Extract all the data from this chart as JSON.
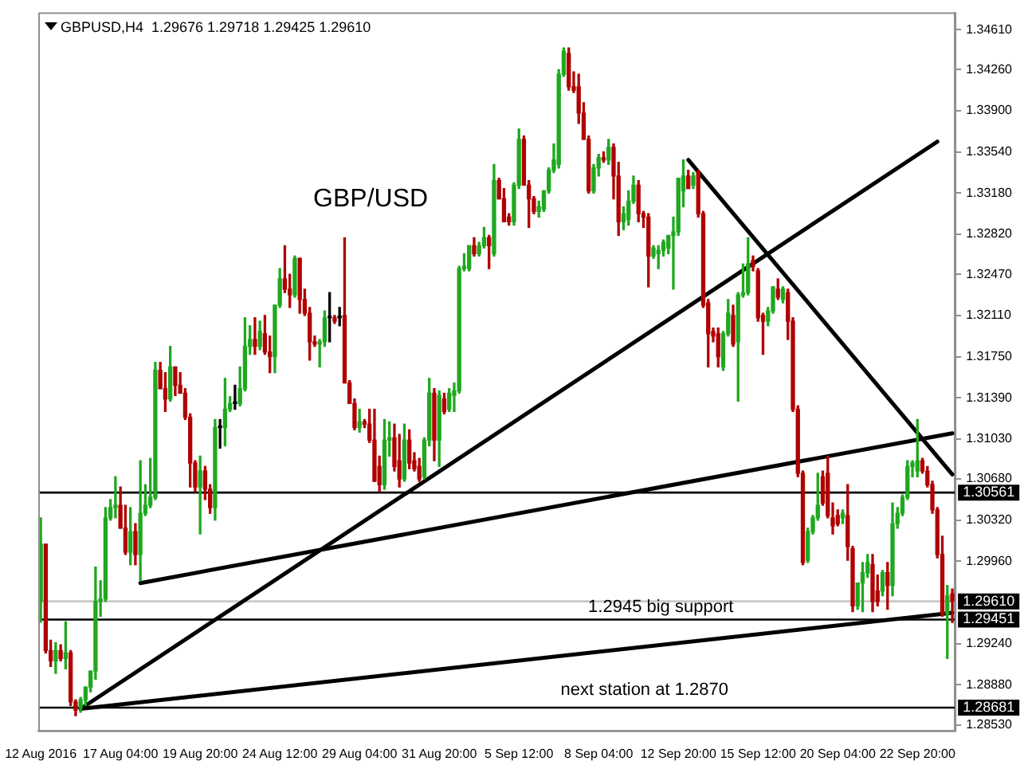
{
  "chart_data": {
    "type": "candlestick",
    "title": "GBPUSD,H4  1.29676 1.29718 1.29425 1.29610",
    "annotations": [
      "GBP/USD",
      "1.2945 big support",
      "next station at 1.2870"
    ],
    "categories": [
      "12 Aug 2016",
      null,
      null,
      null,
      null,
      null,
      null,
      null,
      null,
      null,
      null,
      null,
      null,
      null,
      null,
      null,
      "17 Aug 04:00",
      null,
      null,
      null,
      null,
      null,
      null,
      null,
      null,
      null,
      null,
      null,
      null,
      null,
      null,
      null,
      "19 Aug 20:00",
      null,
      null,
      null,
      null,
      null,
      null,
      null,
      null,
      null,
      null,
      null,
      null,
      null,
      null,
      null,
      "24 Aug 12:00",
      null,
      null,
      null,
      null,
      null,
      null,
      null,
      null,
      null,
      null,
      null,
      null,
      null,
      null,
      null,
      "29 Aug 04:00",
      null,
      null,
      null,
      null,
      null,
      null,
      null,
      null,
      null,
      null,
      null,
      null,
      null,
      null,
      null,
      "31 Aug 20:00",
      null,
      null,
      null,
      null,
      null,
      null,
      null,
      null,
      null,
      null,
      null,
      null,
      null,
      null,
      null,
      "5 Sep 12:00",
      null,
      null,
      null,
      null,
      null,
      null,
      null,
      null,
      null,
      null,
      null,
      null,
      null,
      null,
      null,
      "8 Sep 04:00",
      null,
      null,
      null,
      null,
      null,
      null,
      null,
      null,
      null,
      null,
      null,
      null,
      null,
      null,
      null,
      "12 Sep 20:00",
      null,
      null,
      null,
      null,
      null,
      null,
      null,
      null,
      null,
      null,
      null,
      null,
      null,
      null,
      null,
      "15 Sep 12:00",
      null,
      null,
      null,
      null,
      null,
      null,
      null,
      null,
      null,
      null,
      null,
      null,
      null,
      null,
      null,
      "20 Sep 04:00",
      null,
      null,
      null,
      null,
      null,
      null,
      null,
      null,
      null,
      null,
      null,
      null,
      null,
      null,
      null,
      "22 Sep 20:00",
      null,
      null,
      null,
      null,
      null,
      null,
      null
    ],
    "ohlc": [
      [
        1.2961,
        1.3034,
        1.2943,
        1.3011
      ],
      [
        1.3011,
        1.3011,
        1.2916,
        1.2918
      ],
      [
        1.2918,
        1.2927,
        1.2904,
        1.2909
      ],
      [
        1.2909,
        1.2925,
        1.2898,
        1.2918
      ],
      [
        1.2918,
        1.2923,
        1.2909,
        1.2911
      ],
      [
        1.2911,
        1.2943,
        1.2902,
        1.2916
      ],
      [
        1.2916,
        1.2918,
        1.287,
        1.2873
      ],
      [
        1.2873,
        1.2875,
        1.2861,
        1.2866
      ],
      [
        1.2868,
        1.2877,
        1.2864,
        1.2875
      ],
      [
        1.2875,
        1.2886,
        1.287,
        1.2886
      ],
      [
        1.2886,
        1.29,
        1.2882,
        1.29
      ],
      [
        1.29,
        1.2991,
        1.2893,
        1.2961
      ],
      [
        1.2961,
        1.2979,
        1.2948,
        1.2963
      ],
      [
        1.2963,
        1.3043,
        1.2961,
        1.3034
      ],
      [
        1.3034,
        1.305,
        1.3032,
        1.3043
      ],
      [
        1.3043,
        1.307,
        1.3034,
        1.3045
      ],
      [
        1.3045,
        1.3061,
        1.3025,
        1.3025
      ],
      [
        1.3025,
        1.3045,
        1.3002,
        1.3004
      ],
      [
        1.3004,
        1.3043,
        1.2993,
        1.3022
      ],
      [
        1.3022,
        1.3029,
        1.2993,
        1.3002
      ],
      [
        1.3002,
        1.3084,
        1.2979,
        1.3038
      ],
      [
        1.3038,
        1.3063,
        1.3036,
        1.3045
      ],
      [
        1.3045,
        1.3086,
        1.3043,
        1.3052
      ],
      [
        1.3052,
        1.317,
        1.305,
        1.3163
      ],
      [
        1.3163,
        1.317,
        1.3147,
        1.3147
      ],
      [
        1.3147,
        1.3161,
        1.3127,
        1.3138
      ],
      [
        1.3138,
        1.3184,
        1.3136,
        1.3166
      ],
      [
        1.3166,
        1.3166,
        1.3141,
        1.315
      ],
      [
        1.315,
        1.3161,
        1.3143,
        1.3143
      ],
      [
        1.3143,
        1.3147,
        1.312,
        1.3122
      ],
      [
        1.3122,
        1.3125,
        1.3061,
        1.3082
      ],
      [
        1.3082,
        1.3084,
        1.3057,
        1.3061
      ],
      [
        1.3061,
        1.3088,
        1.302,
        1.3075
      ],
      [
        1.3075,
        1.3079,
        1.305,
        1.3059
      ],
      [
        1.3059,
        1.3063,
        1.3038,
        1.3043
      ],
      [
        1.3043,
        1.312,
        1.3032,
        1.3113
      ],
      [
        1.3113,
        1.312,
        1.3095,
        1.3113
      ],
      [
        1.3113,
        1.3156,
        1.3097,
        1.3129
      ],
      [
        1.3129,
        1.314,
        1.3127,
        1.3134
      ],
      [
        1.3134,
        1.315,
        1.3129,
        1.3134
      ],
      [
        1.3134,
        1.3166,
        1.3132,
        1.3147
      ],
      [
        1.3147,
        1.3209,
        1.3145,
        1.3184
      ],
      [
        1.3184,
        1.3202,
        1.3177,
        1.319
      ],
      [
        1.319,
        1.3209,
        1.3177,
        1.3184
      ],
      [
        1.3184,
        1.3206,
        1.3181,
        1.3197
      ],
      [
        1.3195,
        1.3211,
        1.3177,
        1.3179
      ],
      [
        1.3179,
        1.3193,
        1.3161,
        1.3175
      ],
      [
        1.3175,
        1.322,
        1.3161,
        1.322
      ],
      [
        1.322,
        1.3252,
        1.3218,
        1.3243
      ],
      [
        1.3243,
        1.3272,
        1.3231,
        1.3234
      ],
      [
        1.3234,
        1.3247,
        1.3218,
        1.3229
      ],
      [
        1.3229,
        1.3263,
        1.3227,
        1.3261
      ],
      [
        1.3261,
        1.3261,
        1.3213,
        1.3225
      ],
      [
        1.3225,
        1.3234,
        1.3211,
        1.3213
      ],
      [
        1.3213,
        1.3218,
        1.3172,
        1.3188
      ],
      [
        1.3188,
        1.3193,
        1.3184,
        1.3186
      ],
      [
        1.3186,
        1.319,
        1.3166,
        1.3188
      ],
      [
        1.3188,
        1.3215,
        1.3184,
        1.3209
      ],
      [
        1.3209,
        1.3231,
        1.3188,
        1.3209
      ],
      [
        1.3209,
        1.3211,
        1.3204,
        1.3206
      ],
      [
        1.3209,
        1.3218,
        1.3202,
        1.3209
      ],
      [
        1.3211,
        1.3279,
        1.3152,
        1.3152
      ],
      [
        1.3152,
        1.3154,
        1.3134,
        1.3134
      ],
      [
        1.3134,
        1.3138,
        1.3111,
        1.3113
      ],
      [
        1.3113,
        1.3129,
        1.3109,
        1.3118
      ],
      [
        1.3118,
        1.312,
        1.3113,
        1.3116
      ],
      [
        1.3116,
        1.3129,
        1.31,
        1.3102
      ],
      [
        1.3102,
        1.3129,
        1.3066,
        1.3066
      ],
      [
        1.3079,
        1.3088,
        1.3057,
        1.3063
      ],
      [
        1.3063,
        1.312,
        1.3059,
        1.3102
      ],
      [
        1.3102,
        1.3118,
        1.3088,
        1.3104
      ],
      [
        1.3104,
        1.3116,
        1.3075,
        1.3079
      ],
      [
        1.3084,
        1.3107,
        1.3061,
        1.3068
      ],
      [
        1.3068,
        1.3116,
        1.3066,
        1.3102
      ],
      [
        1.3102,
        1.3111,
        1.3077,
        1.3082
      ],
      [
        1.3084,
        1.3091,
        1.3075,
        1.3077
      ],
      [
        1.3079,
        1.3086,
        1.3066,
        1.3068
      ],
      [
        1.307,
        1.3104,
        1.3068,
        1.3102
      ],
      [
        1.3102,
        1.3156,
        1.3097,
        1.3143
      ],
      [
        1.3143,
        1.3147,
        1.3084,
        1.3102
      ],
      [
        1.3102,
        1.3145,
        1.3079,
        1.3141
      ],
      [
        1.3138,
        1.3143,
        1.3125,
        1.3127
      ],
      [
        1.3129,
        1.3147,
        1.3127,
        1.3143
      ],
      [
        1.3141,
        1.3152,
        1.3127,
        1.3145
      ],
      [
        1.3145,
        1.3254,
        1.3143,
        1.3252
      ],
      [
        1.3252,
        1.3265,
        1.325,
        1.3254
      ],
      [
        1.3252,
        1.3272,
        1.325,
        1.3272
      ],
      [
        1.3272,
        1.3279,
        1.3263,
        1.3265
      ],
      [
        1.3265,
        1.3275,
        1.3263,
        1.3272
      ],
      [
        1.3272,
        1.3288,
        1.327,
        1.3279
      ],
      [
        1.3279,
        1.3281,
        1.3252,
        1.3272
      ],
      [
        1.3265,
        1.3343,
        1.3263,
        1.3329
      ],
      [
        1.3329,
        1.3331,
        1.3313,
        1.3313
      ],
      [
        1.3313,
        1.3322,
        1.3293,
        1.3293
      ],
      [
        1.3297,
        1.33,
        1.329,
        1.3293
      ],
      [
        1.3293,
        1.3327,
        1.329,
        1.3325
      ],
      [
        1.3325,
        1.3374,
        1.3322,
        1.3365
      ],
      [
        1.3365,
        1.3368,
        1.3325,
        1.3325
      ],
      [
        1.3325,
        1.3329,
        1.3288,
        1.3313
      ],
      [
        1.3313,
        1.3315,
        1.33,
        1.3302
      ],
      [
        1.3302,
        1.3311,
        1.3297,
        1.3306
      ],
      [
        1.3304,
        1.332,
        1.3302,
        1.332
      ],
      [
        1.332,
        1.334,
        1.3318,
        1.3338
      ],
      [
        1.3338,
        1.3361,
        1.3336,
        1.3347
      ],
      [
        1.3343,
        1.3426,
        1.334,
        1.3422
      ],
      [
        1.3422,
        1.3445,
        1.342,
        1.3442
      ],
      [
        1.344,
        1.3445,
        1.3408,
        1.3411
      ],
      [
        1.3411,
        1.3424,
        1.3406,
        1.3408
      ],
      [
        1.3411,
        1.3422,
        1.3379,
        1.3388
      ],
      [
        1.3388,
        1.3397,
        1.3365,
        1.3365
      ],
      [
        1.3365,
        1.3368,
        1.3318,
        1.332
      ],
      [
        1.332,
        1.3343,
        1.3318,
        1.334
      ],
      [
        1.334,
        1.3352,
        1.3333,
        1.3349
      ],
      [
        1.3349,
        1.3354,
        1.3345,
        1.3347
      ],
      [
        1.3347,
        1.3365,
        1.3343,
        1.3358
      ],
      [
        1.3358,
        1.3361,
        1.3313,
        1.3333
      ],
      [
        1.3333,
        1.3345,
        1.3281,
        1.3293
      ],
      [
        1.3293,
        1.3306,
        1.3286,
        1.33
      ],
      [
        1.3295,
        1.332,
        1.329,
        1.3311
      ],
      [
        1.3311,
        1.3333,
        1.3309,
        1.3325
      ],
      [
        1.3325,
        1.3329,
        1.3293,
        1.33
      ],
      [
        1.33,
        1.3302,
        1.3288,
        1.3297
      ],
      [
        1.3297,
        1.33,
        1.3236,
        1.3263
      ],
      [
        1.3263,
        1.3272,
        1.3261,
        1.327
      ],
      [
        1.3265,
        1.3272,
        1.3252,
        1.3268
      ],
      [
        1.3268,
        1.3277,
        1.3263,
        1.3275
      ],
      [
        1.327,
        1.3281,
        1.3265,
        1.3281
      ],
      [
        1.3281,
        1.3297,
        1.3234,
        1.3284
      ],
      [
        1.3284,
        1.3331,
        1.3281,
        1.3331
      ],
      [
        1.332,
        1.3347,
        1.3306,
        1.3333
      ],
      [
        1.3333,
        1.3338,
        1.3322,
        1.3322
      ],
      [
        1.3325,
        1.3336,
        1.3322,
        1.3333
      ],
      [
        1.3336,
        1.3338,
        1.3297,
        1.33
      ],
      [
        1.33,
        1.3302,
        1.3218,
        1.322
      ],
      [
        1.3222,
        1.3225,
        1.3166,
        1.3195
      ],
      [
        1.3197,
        1.32,
        1.3188,
        1.3193
      ],
      [
        1.3195,
        1.32,
        1.3166,
        1.3175
      ],
      [
        1.3166,
        1.3197,
        1.3163,
        1.3195
      ],
      [
        1.3195,
        1.3225,
        1.3193,
        1.3213
      ],
      [
        1.3211,
        1.322,
        1.3184,
        1.3186
      ],
      [
        1.3188,
        1.3231,
        1.3136,
        1.3229
      ],
      [
        1.3229,
        1.3256,
        1.3227,
        1.3231
      ],
      [
        1.3231,
        1.3279,
        1.3229,
        1.3256
      ],
      [
        1.3259,
        1.3263,
        1.325,
        1.3254
      ],
      [
        1.325,
        1.3252,
        1.3206,
        1.3209
      ],
      [
        1.3211,
        1.3213,
        1.3177,
        1.3206
      ],
      [
        1.3206,
        1.3218,
        1.3202,
        1.3215
      ],
      [
        1.3215,
        1.3236,
        1.3213,
        1.3236
      ],
      [
        1.3234,
        1.3243,
        1.3225,
        1.3227
      ],
      [
        1.3225,
        1.3236,
        1.3222,
        1.3234
      ],
      [
        1.3231,
        1.3234,
        1.319,
        1.3206
      ],
      [
        1.3206,
        1.3209,
        1.3127,
        1.3129
      ],
      [
        1.3129,
        1.3132,
        1.307,
        1.3073
      ],
      [
        1.3073,
        1.3075,
        1.2993,
        1.2995
      ],
      [
        1.2997,
        1.3025,
        1.2995,
        1.3022
      ],
      [
        1.3022,
        1.3036,
        1.302,
        1.3034
      ],
      [
        1.3034,
        1.3073,
        1.3032,
        1.3045
      ],
      [
        1.307,
        1.3075,
        1.3045,
        1.3047
      ],
      [
        1.3073,
        1.3088,
        1.3034,
        1.3036
      ],
      [
        1.3034,
        1.3047,
        1.302,
        1.3027
      ],
      [
        1.3036,
        1.3041,
        1.3027,
        1.3029
      ],
      [
        1.3034,
        1.3041,
        1.3029,
        1.3038
      ],
      [
        1.3036,
        1.3063,
        1.2997,
        1.3009
      ],
      [
        1.3007,
        1.3009,
        1.2952,
        1.2957
      ],
      [
        1.2957,
        1.2977,
        1.2954,
        1.2977
      ],
      [
        1.2977,
        1.2995,
        1.2952,
        1.2986
      ],
      [
        1.2986,
        1.3002,
        1.2982,
        1.2995
      ],
      [
        1.2993,
        1.3002,
        1.2952,
        1.2961
      ],
      [
        1.297,
        1.2984,
        1.2957,
        1.2961
      ],
      [
        1.297,
        1.2988,
        1.2966,
        1.2986
      ],
      [
        1.2986,
        1.2995,
        1.2954,
        1.2975
      ],
      [
        1.2975,
        1.3047,
        1.2966,
        1.3029
      ],
      [
        1.3029,
        1.3043,
        1.3025,
        1.3038
      ],
      [
        1.3038,
        1.3054,
        1.3036,
        1.3052
      ],
      [
        1.3052,
        1.3084,
        1.305,
        1.3079
      ],
      [
        1.3079,
        1.3084,
        1.307,
        1.3082
      ],
      [
        1.3075,
        1.312,
        1.307,
        1.3084
      ],
      [
        1.3084,
        1.3086,
        1.3073,
        1.3075
      ],
      [
        1.3075,
        1.3079,
        1.3061,
        1.3063
      ],
      [
        1.3063,
        1.3066,
        1.3038,
        1.3041
      ],
      [
        1.3041,
        1.3043,
        1.2999,
        1.3002
      ],
      [
        1.3002,
        1.3018,
        1.2948,
        1.295
      ],
      [
        1.295,
        1.2975,
        1.2911,
        1.2966
      ],
      [
        1.29676,
        1.29718,
        1.29425,
        1.2961
      ]
    ],
    "series": [
      {
        "type": "line",
        "color": "#000000",
        "values": [
          null,
          null,
          null,
          null,
          null,
          null,
          null,
          null,
          1.2867,
          null,
          null,
          null,
          null,
          null,
          null,
          null,
          null,
          null,
          null,
          null,
          null,
          null,
          null,
          null,
          null,
          null,
          null,
          null,
          null,
          null,
          null,
          null,
          null,
          null,
          null,
          null,
          null,
          null,
          null,
          null,
          null,
          null,
          null,
          null,
          null,
          null,
          null,
          null,
          null,
          null,
          null,
          null,
          null,
          null,
          null,
          null,
          null,
          null,
          null,
          null,
          null,
          null,
          null,
          null,
          null,
          null,
          null,
          null,
          null,
          null,
          null,
          null,
          null,
          null,
          null,
          null,
          null,
          null,
          null,
          null,
          null,
          null,
          null,
          null,
          null,
          null,
          null,
          null,
          null,
          null,
          null,
          null,
          null,
          null,
          null,
          null,
          null,
          null,
          null,
          null,
          null,
          null,
          null,
          null,
          null,
          null,
          null,
          null,
          null,
          null,
          null,
          null,
          null,
          null,
          null,
          null,
          null,
          null,
          null,
          null,
          null,
          null,
          null,
          null,
          null,
          null,
          null,
          null,
          null,
          null,
          null,
          null,
          null,
          null,
          null,
          null,
          null,
          null,
          null,
          null,
          null,
          null,
          null,
          null,
          null,
          null,
          null,
          null,
          null,
          null,
          null,
          null,
          null,
          null,
          null,
          null,
          null,
          null,
          null,
          null,
          null,
          null,
          null,
          null,
          null,
          null,
          null,
          null,
          null,
          null,
          null,
          null,
          null,
          null,
          null,
          null,
          null,
          null,
          null,
          null,
          1.3363,
          null,
          null,
          null
        ]
      },
      {
        "type": "line",
        "color": "#000000",
        "values": [
          null,
          null,
          null,
          null,
          null,
          null,
          null,
          null,
          1.2867,
          null,
          null,
          null,
          null,
          null,
          null,
          null,
          null,
          null,
          null,
          null,
          null,
          null,
          null,
          null,
          null,
          null,
          null,
          null,
          null,
          null,
          null,
          null,
          null,
          null,
          null,
          null,
          null,
          null,
          null,
          null,
          null,
          null,
          null,
          null,
          null,
          null,
          null,
          null,
          null,
          null,
          null,
          null,
          null,
          null,
          null,
          null,
          null,
          null,
          null,
          null,
          null,
          null,
          null,
          null,
          null,
          null,
          null,
          null,
          null,
          null,
          null,
          null,
          null,
          null,
          null,
          null,
          null,
          null,
          null,
          null,
          null,
          null,
          null,
          null,
          null,
          null,
          null,
          null,
          null,
          null,
          null,
          null,
          null,
          null,
          null,
          null,
          null,
          null,
          null,
          null,
          null,
          null,
          null,
          null,
          null,
          null,
          null,
          null,
          null,
          null,
          null,
          null,
          null,
          null,
          null,
          null,
          null,
          null,
          null,
          null,
          null,
          null,
          null,
          null,
          null,
          null,
          null,
          null,
          null,
          null,
          null,
          null,
          null,
          null,
          null,
          null,
          null,
          null,
          null,
          null,
          null,
          null,
          null,
          null,
          null,
          null,
          null,
          null,
          null,
          null,
          null,
          null,
          null,
          null,
          null,
          null,
          null,
          null,
          null,
          null,
          null,
          null,
          null,
          null,
          null,
          null,
          null,
          null,
          null,
          null,
          null,
          null,
          null,
          null,
          null,
          null,
          null,
          null,
          null,
          null,
          null,
          null,
          null,
          1.2951
        ]
      },
      {
        "type": "line",
        "color": "#000000",
        "values": [
          null,
          null,
          null,
          null,
          null,
          null,
          null,
          null,
          null,
          null,
          null,
          null,
          null,
          null,
          null,
          null,
          null,
          null,
          null,
          null,
          1.2977,
          null,
          null,
          null,
          null,
          null,
          null,
          null,
          null,
          null,
          null,
          null,
          null,
          null,
          null,
          null,
          null,
          null,
          null,
          null,
          null,
          null,
          null,
          null,
          null,
          null,
          null,
          null,
          null,
          null,
          null,
          null,
          null,
          null,
          null,
          null,
          null,
          null,
          null,
          null,
          null,
          null,
          null,
          null,
          null,
          null,
          null,
          null,
          null,
          null,
          null,
          null,
          null,
          null,
          null,
          null,
          null,
          null,
          null,
          null,
          null,
          null,
          null,
          null,
          null,
          null,
          null,
          null,
          null,
          null,
          null,
          null,
          null,
          null,
          null,
          null,
          null,
          null,
          null,
          null,
          null,
          null,
          null,
          null,
          null,
          null,
          null,
          null,
          null,
          null,
          null,
          null,
          null,
          null,
          null,
          null,
          null,
          null,
          null,
          null,
          null,
          null,
          null,
          null,
          null,
          null,
          null,
          null,
          null,
          null,
          null,
          null,
          null,
          null,
          null,
          null,
          null,
          null,
          null,
          null,
          null,
          null,
          null,
          null,
          null,
          null,
          null,
          null,
          null,
          null,
          null,
          null,
          null,
          null,
          null,
          null,
          null,
          null,
          null,
          null,
          null,
          null,
          null,
          null,
          null,
          null,
          null,
          null,
          null,
          null,
          null,
          null,
          null,
          null,
          null,
          null,
          null,
          null,
          null,
          null,
          null,
          null,
          null,
          1.3108
        ]
      },
      {
        "type": "line",
        "color": "#000000",
        "values": [
          null,
          null,
          null,
          null,
          null,
          null,
          null,
          null,
          null,
          null,
          null,
          null,
          null,
          null,
          null,
          null,
          null,
          null,
          null,
          null,
          null,
          null,
          null,
          null,
          null,
          null,
          null,
          null,
          null,
          null,
          null,
          null,
          null,
          null,
          null,
          null,
          null,
          null,
          null,
          null,
          null,
          null,
          null,
          null,
          null,
          null,
          null,
          null,
          null,
          null,
          null,
          null,
          null,
          null,
          null,
          null,
          null,
          null,
          null,
          null,
          null,
          null,
          null,
          null,
          null,
          null,
          null,
          null,
          null,
          null,
          null,
          null,
          null,
          null,
          null,
          null,
          null,
          null,
          null,
          null,
          null,
          null,
          null,
          null,
          null,
          null,
          null,
          null,
          null,
          null,
          null,
          null,
          null,
          null,
          null,
          null,
          null,
          null,
          null,
          null,
          null,
          null,
          null,
          null,
          null,
          null,
          null,
          null,
          null,
          null,
          null,
          null,
          null,
          null,
          null,
          null,
          null,
          null,
          null,
          null,
          null,
          null,
          null,
          null,
          null,
          null,
          null,
          null,
          null,
          null,
          1.3347,
          null,
          null,
          null,
          null,
          null,
          null,
          null,
          null,
          null,
          null,
          null,
          null,
          null,
          null,
          null,
          null,
          null,
          null,
          null,
          null,
          null,
          null,
          null,
          null,
          null,
          null,
          null,
          null,
          null,
          null,
          null,
          null,
          null,
          null,
          null,
          null,
          null,
          null,
          null,
          null,
          null,
          null,
          null,
          null,
          null,
          null,
          null,
          null,
          null,
          null,
          null,
          null,
          1.3072
        ]
      }
    ],
    "ylim": [
      1.2848,
      1.3476
    ],
    "yticks": [
      {
        "value": 1.3461,
        "label": "1.34610"
      },
      {
        "value": 1.3426,
        "label": "1.34260"
      },
      {
        "value": 1.339,
        "label": "1.33900"
      },
      {
        "value": 1.3354,
        "label": "1.33540"
      },
      {
        "value": 1.3318,
        "label": "1.33180"
      },
      {
        "value": 1.3282,
        "label": "1.32820"
      },
      {
        "value": 1.3247,
        "label": "1.32470"
      },
      {
        "value": 1.3211,
        "label": "1.32110"
      },
      {
        "value": 1.3175,
        "label": "1.31750"
      },
      {
        "value": 1.3139,
        "label": "1.31390"
      },
      {
        "value": 1.3103,
        "label": "1.31030"
      },
      {
        "value": 1.3068,
        "label": "1.30680"
      },
      {
        "value": 1.3032,
        "label": "1.30320"
      },
      {
        "value": 1.2996,
        "label": "1.29960"
      },
      {
        "value": 1.2924,
        "label": "1.29240"
      },
      {
        "value": 1.2888,
        "label": "1.28880"
      },
      {
        "value": 1.2853,
        "label": "1.28530"
      }
    ],
    "ref_lines": [
      {
        "axis": "y",
        "value": 1.30561,
        "label": "1.30561",
        "color": "#000000"
      },
      {
        "axis": "y",
        "value": 1.2961,
        "label": "1.29610",
        "color": "#c8c8c8"
      },
      {
        "axis": "y",
        "value": 1.29451,
        "label": "1.29451",
        "color": "#000000"
      },
      {
        "axis": "y",
        "value": 1.28681,
        "label": "1.28681",
        "color": "#000000"
      }
    ]
  }
}
